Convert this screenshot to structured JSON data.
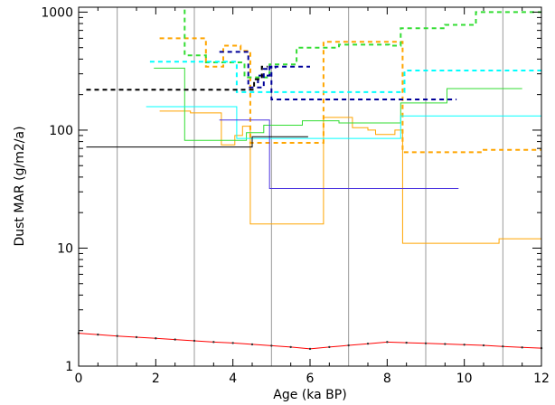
{
  "chart_data": {
    "type": "line",
    "xlabel": "Age (ka BP)",
    "ylabel": "Dust MAR (g/m2/a)",
    "xlim": [
      0,
      12
    ],
    "ylim": [
      1,
      1100
    ],
    "yscale": "log",
    "x_ticks": [
      0,
      2,
      4,
      6,
      8,
      10,
      12
    ],
    "y_ticks": [
      1,
      10,
      100,
      1000
    ],
    "vertical_grid_ages": [
      1,
      3,
      5,
      7,
      9,
      11
    ],
    "colors": {
      "red": "#ff0000",
      "orange": "#ffa500",
      "green": "#33dd33",
      "cyan": "#00ffff",
      "navy": "#000099",
      "blue": "#4b33e0",
      "black": "#000000",
      "grid": "#9a9a9a"
    },
    "series": [
      {
        "color": "red",
        "dash": "solid",
        "marker": "dot",
        "x": [
          0,
          0.5,
          1,
          1.5,
          2,
          2.5,
          3,
          3.5,
          4,
          4.5,
          5,
          5.5,
          6,
          6.5,
          7,
          7.5,
          8,
          8.5,
          9,
          9.5,
          10,
          10.5,
          11,
          11.5,
          12
        ],
        "y": [
          1.9,
          1.85,
          1.8,
          1.76,
          1.72,
          1.68,
          1.64,
          1.6,
          1.57,
          1.53,
          1.49,
          1.45,
          1.4,
          1.45,
          1.5,
          1.55,
          1.6,
          1.58,
          1.56,
          1.54,
          1.52,
          1.5,
          1.47,
          1.44,
          1.42
        ]
      },
      {
        "color": "orange",
        "dash": "solid",
        "x": [
          2.1,
          2.9,
          2.9,
          3.7,
          3.7,
          4.05,
          4.05,
          4.25,
          4.25,
          4.45,
          4.45,
          6.35,
          6.35,
          7.1,
          7.1,
          7.5,
          7.5,
          7.7,
          7.7,
          8.2,
          8.2,
          8.4,
          8.4,
          10.9,
          10.9,
          12
        ],
        "y": [
          145,
          145,
          140,
          140,
          75,
          75,
          90,
          90,
          108,
          108,
          16,
          16,
          128,
          128,
          105,
          105,
          100,
          100,
          92,
          92,
          100,
          100,
          11,
          11,
          12,
          12
        ]
      },
      {
        "color": "orange",
        "dash": "dash",
        "x": [
          2.1,
          3.3,
          3.3,
          3.75,
          3.75,
          4.2,
          4.2,
          4.45,
          4.45,
          6.35,
          6.35,
          8.4,
          8.4,
          10.5,
          10.5,
          12
        ],
        "y": [
          600,
          600,
          345,
          345,
          520,
          520,
          470,
          470,
          78,
          78,
          560,
          560,
          65,
          65,
          68,
          68
        ]
      },
      {
        "color": "green",
        "dash": "solid",
        "x": [
          1.95,
          2.75,
          2.75,
          4.35,
          4.35,
          4.8,
          4.8,
          5.8,
          5.8,
          6.75,
          6.75,
          8.35,
          8.35,
          9.55,
          9.55,
          11.5
        ],
        "y": [
          335,
          335,
          82,
          82,
          95,
          95,
          110,
          110,
          120,
          120,
          115,
          115,
          170,
          170,
          225,
          225
        ]
      },
      {
        "color": "green",
        "dash": "dash",
        "x": [
          2.75,
          2.75,
          3.3,
          3.3,
          4.3,
          4.3,
          4.95,
          4.95,
          5.65,
          5.65,
          6.75,
          6.75,
          8.05,
          8.05,
          8.35,
          8.35,
          9.5,
          9.5,
          10.3,
          10.3,
          12
        ],
        "y": [
          1050,
          430,
          430,
          375,
          375,
          280,
          280,
          360,
          360,
          500,
          500,
          530,
          530,
          520,
          520,
          730,
          730,
          780,
          780,
          1000,
          1000
        ]
      },
      {
        "color": "cyan",
        "dash": "solid",
        "x": [
          1.75,
          4.1,
          4.1,
          8.35,
          8.35,
          12
        ],
        "y": [
          158,
          158,
          85,
          85,
          132,
          132
        ]
      },
      {
        "color": "cyan",
        "dash": "dash",
        "x": [
          1.85,
          4.1,
          4.1,
          8.45,
          8.45,
          12
        ],
        "y": [
          380,
          380,
          210,
          210,
          320,
          320
        ]
      },
      {
        "color": "navy",
        "dash": "dash",
        "x": [
          3.65,
          4.4,
          4.4,
          4.8,
          4.8,
          4.95,
          4.95,
          5.0,
          5.0,
          9.8
        ],
        "y": [
          460,
          460,
          230,
          230,
          330,
          330,
          345,
          345,
          182,
          182
        ]
      },
      {
        "color": "navy",
        "dash": "dash",
        "x": [
          4.65,
          4.65,
          4.95,
          4.95,
          5.1,
          5.1,
          6.0
        ],
        "y": [
          250,
          290,
          290,
          340,
          340,
          345,
          345
        ]
      },
      {
        "color": "black",
        "dash": "dash",
        "x": [
          0.2,
          4.55,
          4.55,
          4.75,
          4.75,
          4.9
        ],
        "y": [
          220,
          220,
          270,
          270,
          345,
          345
        ]
      },
      {
        "color": "blue",
        "dash": "solid",
        "x": [
          3.65,
          4.95,
          4.95,
          9.85
        ],
        "y": [
          122,
          122,
          32,
          32
        ]
      },
      {
        "color": "black",
        "dash": "solid",
        "x": [
          0.2,
          4.5,
          4.5,
          5.95
        ],
        "y": [
          72,
          72,
          88,
          88
        ]
      }
    ]
  }
}
